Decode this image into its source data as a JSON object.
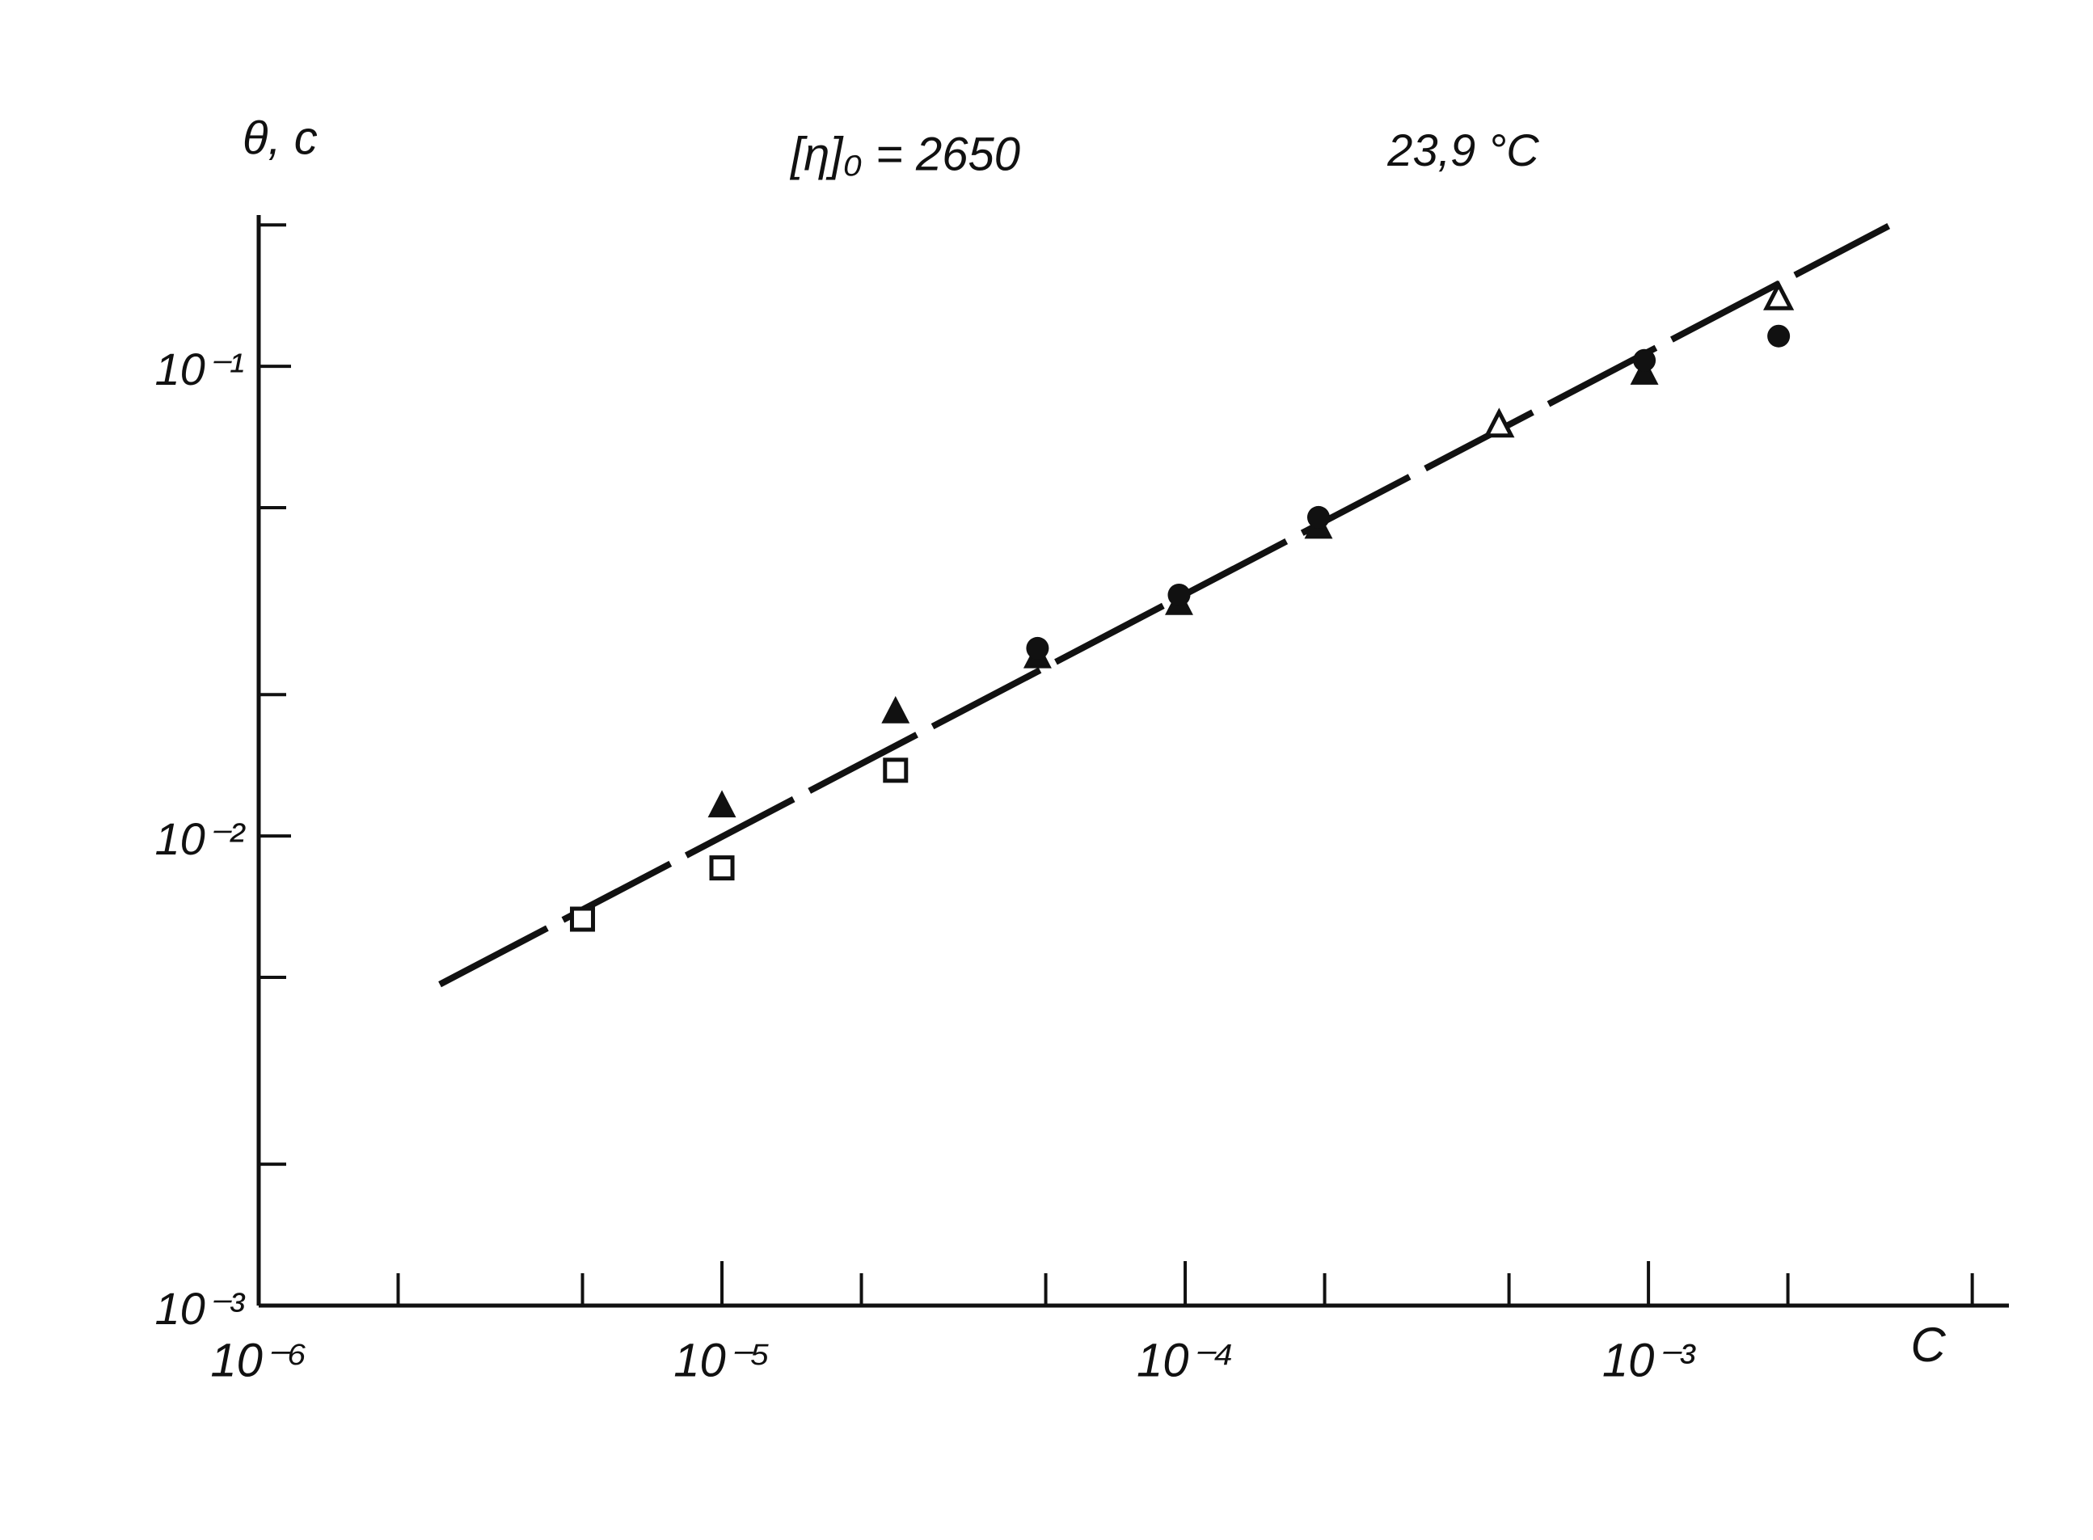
{
  "chart_data": {
    "type": "scatter",
    "title": "[η]₀ = 2650",
    "annotation": "23,9 °C",
    "y_label": "θ, c",
    "x_label": "C",
    "log_x": true,
    "log_y": true,
    "xlim": [
      1e-06,
      0.006
    ],
    "ylim": [
      0.001,
      0.21
    ],
    "xticks": [
      {
        "value": 1e-06,
        "label": "10⁻⁶"
      },
      {
        "value": 1e-05,
        "label": "10⁻⁵"
      },
      {
        "value": 0.0001,
        "label": "10⁻⁴"
      },
      {
        "value": 0.001,
        "label": "10⁻³"
      }
    ],
    "xminorticks": [
      2e-06,
      5e-06,
      2e-05,
      5e-05,
      0.0002,
      0.0005,
      0.002,
      0.005
    ],
    "yticks": [
      {
        "value": 0.001,
        "label": "10⁻³"
      },
      {
        "value": 0.01,
        "label": "10⁻²"
      },
      {
        "value": 0.1,
        "label": "10⁻¹"
      }
    ],
    "yminorticks": [
      0.002,
      0.005,
      0.02,
      0.05,
      0.2
    ],
    "series": [
      {
        "marker": "square-open",
        "color": "#111111",
        "x": [
          5e-06,
          1e-05,
          2.37e-05
        ],
        "values": [
          0.00665,
          0.00855,
          0.0138
        ]
      },
      {
        "marker": "triangle-filled",
        "color": "#111111",
        "x": [
          1e-05,
          2.37e-05,
          4.8e-05,
          9.7e-05,
          0.000194,
          0.00098
        ],
        "values": [
          0.0116,
          0.0184,
          0.0241,
          0.0313,
          0.0455,
          0.0968
        ]
      },
      {
        "marker": "circle-filled",
        "color": "#111111",
        "x": [
          4.8e-05,
          9.7e-05,
          0.000194,
          0.00098,
          0.00191
        ],
        "values": [
          0.0251,
          0.0326,
          0.0477,
          0.103,
          0.116
        ]
      },
      {
        "marker": "triangle-open",
        "color": "#111111",
        "x": [
          0.000476,
          0.00191
        ],
        "values": [
          0.075,
          0.14
        ]
      }
    ],
    "fit": {
      "color": "#111111",
      "dashed": true,
      "x": [
        2.46e-06,
        0.0033
      ],
      "values": [
        0.00483,
        0.199
      ]
    }
  }
}
